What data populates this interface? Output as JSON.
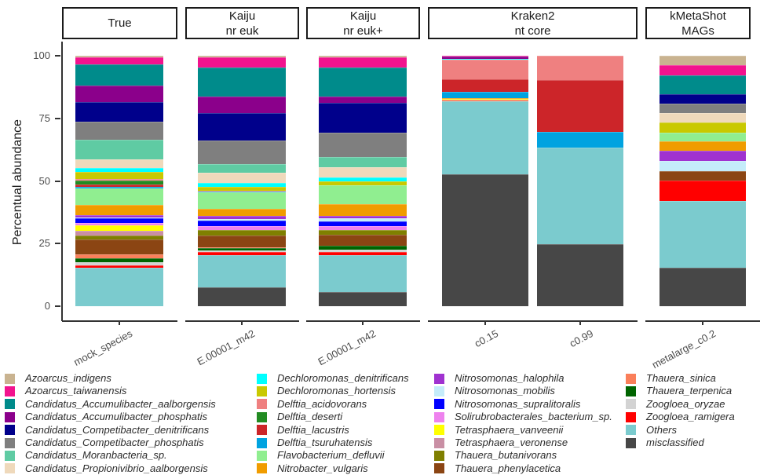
{
  "chart": {
    "y_axis": {
      "title": "Percentual abundance",
      "ticks": [
        "100",
        "75",
        "50",
        "25",
        "0"
      ]
    },
    "facets": [
      {
        "line1": "True",
        "line2": ""
      },
      {
        "line1": "Kaiju",
        "line2": "nr euk"
      },
      {
        "line1": "Kaiju",
        "line2": "nr euk+"
      },
      {
        "line1": "Kraken2",
        "line2": "nt core"
      },
      {
        "line1": "kMetaShot",
        "line2": "MAGs"
      }
    ],
    "x_labels": [
      "mock_species",
      "E.00001_m42",
      "E.00001_m42",
      "c0.15",
      "c0.99",
      "metalarge_c0.2"
    ]
  },
  "chart_data": {
    "type": "bar",
    "stacked": true,
    "orientation": "vertical",
    "title": "",
    "xlabel": "",
    "ylabel": "Percentual abundance",
    "ylim": [
      0,
      100
    ],
    "grid": false,
    "legend_position": "bottom",
    "legend_column_sizes": [
      8,
      8,
      8,
      6
    ],
    "categories": [
      "mock_species",
      "E.00001_m42",
      "E.00001_m42",
      "c0.15",
      "c0.99",
      "metalarge_c0.2"
    ],
    "category_facets": [
      "True",
      "Kaiju nr euk",
      "Kaiju nr euk+",
      "Kraken2 nt core",
      "Kraken2 nt core",
      "kMetaShot MAGs"
    ],
    "series": [
      {
        "name": "Azoarcus_indigens",
        "color": "#C9B390",
        "values": [
          0.7,
          0.7,
          0.7,
          0,
          0,
          3.8
        ]
      },
      {
        "name": "Azoarcus_taiwanensis",
        "color": "#F2138E",
        "values": [
          2.8,
          4.1,
          3.9,
          0.3,
          0,
          3.9
        ]
      },
      {
        "name": "Candidatus_Accumulibacter_aalborgensis",
        "color": "#008B8B",
        "values": [
          8.3,
          11.4,
          11.6,
          0,
          0,
          7.8
        ]
      },
      {
        "name": "Candidatus_Accumulibacter_phosphatis",
        "color": "#8B008B",
        "values": [
          6.8,
          6.8,
          2.6,
          0.8,
          0,
          0
        ]
      },
      {
        "name": "Candidatus_Competibacter_denitrificans",
        "color": "#00008B",
        "values": [
          7.8,
          10.9,
          11.9,
          0,
          0,
          3.6
        ]
      },
      {
        "name": "Candidatus_Competibacter_phosphatis",
        "color": "#7F7F7F",
        "values": [
          7.3,
          9.3,
          9.8,
          0,
          0,
          3.8
        ]
      },
      {
        "name": "Candidatus_Moranbacteria_sp.",
        "color": "#5FCBA3",
        "values": [
          7.8,
          3.6,
          4.1,
          0,
          0,
          0
        ]
      },
      {
        "name": "Candidatus_Propionivibrio_aalborgensis",
        "color": "#EFD9BB",
        "values": [
          3.3,
          4.1,
          4.1,
          0,
          0,
          3.9
        ]
      },
      {
        "name": "Dechloromonas_denitrificans",
        "color": "#00FFFF",
        "values": [
          1.7,
          1.6,
          1.6,
          0.5,
          0,
          0
        ]
      },
      {
        "name": "Dechloromonas_hortensis",
        "color": "#C9C900",
        "values": [
          2.8,
          1.3,
          1.6,
          0,
          0,
          3.8
        ]
      },
      {
        "name": "Delftia_acidovorans",
        "color": "#EF8080",
        "values": [
          0.7,
          0.4,
          0,
          7.7,
          9.8,
          0
        ]
      },
      {
        "name": "Delftia_deserti",
        "color": "#228B22",
        "values": [
          1.3,
          0,
          0,
          0,
          0,
          0
        ]
      },
      {
        "name": "Delftia_lacustris",
        "color": "#CC2529",
        "values": [
          1.0,
          0,
          0,
          5.0,
          20.6,
          0
        ]
      },
      {
        "name": "Delftia_tsuruhatensis",
        "color": "#00A3E0",
        "values": [
          0.7,
          0.3,
          0,
          2.6,
          6.4,
          0
        ]
      },
      {
        "name": "Flavobacterium_defluvii",
        "color": "#90EE90",
        "values": [
          6.5,
          6.8,
          7.3,
          0,
          0,
          3.6
        ]
      },
      {
        "name": "Nitrobacter_vulgaris",
        "color": "#F09C00",
        "values": [
          4.2,
          2.6,
          4.7,
          0.3,
          0,
          3.9
        ]
      },
      {
        "name": "Nitrosomonas_halophila",
        "color": "#A032D0",
        "values": [
          0.8,
          1.4,
          1.0,
          0,
          0,
          3.8
        ]
      },
      {
        "name": "Nitrosomonas_mobilis",
        "color": "#C4ECFA",
        "values": [
          0.5,
          0.7,
          1.2,
          0,
          0,
          4.1
        ]
      },
      {
        "name": "Nitrosomonas_supralitoralis",
        "color": "#0000FF",
        "values": [
          1.8,
          2.1,
          1.9,
          0,
          0,
          0
        ]
      },
      {
        "name": "Solirubrobacterales_bacterium_sp.",
        "color": "#EE82EE",
        "values": [
          0.8,
          1.6,
          1.6,
          0,
          0,
          0
        ]
      },
      {
        "name": "Tetrasphaera_vanveenii",
        "color": "#FFFF00",
        "values": [
          2.3,
          0,
          0,
          0.5,
          0,
          0
        ]
      },
      {
        "name": "Tetrasphaera_veronense",
        "color": "#C98FA4",
        "values": [
          1.9,
          0,
          0,
          0,
          0,
          0
        ]
      },
      {
        "name": "Thauera_butanivorans",
        "color": "#7F7F00",
        "values": [
          1.5,
          2.1,
          1.8,
          0,
          0,
          0
        ]
      },
      {
        "name": "Thauera_phenylacetica",
        "color": "#8B4513",
        "values": [
          6.0,
          4.7,
          4.5,
          0,
          0,
          3.9
        ]
      },
      {
        "name": "Thauera_sinica",
        "color": "#FA7F5A",
        "values": [
          1.6,
          0.3,
          0,
          0.4,
          0,
          0
        ]
      },
      {
        "name": "Thauera_terpenica",
        "color": "#006400",
        "values": [
          1.6,
          1.0,
          1.6,
          0,
          0,
          0
        ]
      },
      {
        "name": "Zoogloea_oryzae",
        "color": "#D3D3D3",
        "values": [
          1.3,
          0.5,
          1.0,
          0,
          0,
          0
        ]
      },
      {
        "name": "Zoogloea_ramigera",
        "color": "#FF0000",
        "values": [
          1.0,
          1.3,
          1.2,
          0,
          0,
          8.0
        ]
      },
      {
        "name": "Others",
        "color": "#7BCBCE",
        "values": [
          15.2,
          13.0,
          14.6,
          29.4,
          38.5,
          26.8
        ]
      },
      {
        "name": "misclassified",
        "color": "#474747",
        "values": [
          0,
          7.4,
          5.7,
          52.5,
          24.7,
          15.3
        ]
      }
    ]
  }
}
